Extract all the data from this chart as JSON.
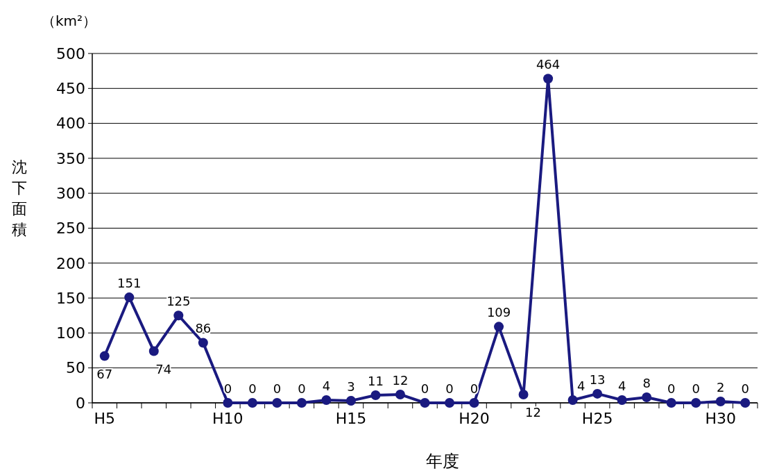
{
  "chart_data": {
    "type": "line",
    "ylabel": "沈下面積",
    "xlabel": "年度",
    "annotations": [
      "（km²）"
    ],
    "categories": [
      "H5",
      null,
      null,
      null,
      null,
      "H10",
      null,
      null,
      null,
      null,
      "H15",
      null,
      null,
      null,
      null,
      "H20",
      null,
      null,
      null,
      null,
      "H25",
      null,
      null,
      null,
      null,
      "H30",
      null
    ],
    "series": [
      {
        "color": "#1a1a80",
        "values": [
          67,
          151,
          74,
          125,
          86,
          0,
          0,
          0,
          0,
          4,
          3,
          11,
          12,
          0,
          0,
          0,
          109,
          12,
          464,
          4,
          13,
          4,
          8,
          0,
          0,
          2,
          0
        ]
      }
    ],
    "ylim": [
      0,
      500
    ],
    "yticks": [
      0,
      50,
      100,
      150,
      200,
      250,
      300,
      350,
      400,
      450,
      500
    ],
    "grid": "y",
    "marker": "circle",
    "line_style": "solid",
    "data_labels": true
  }
}
